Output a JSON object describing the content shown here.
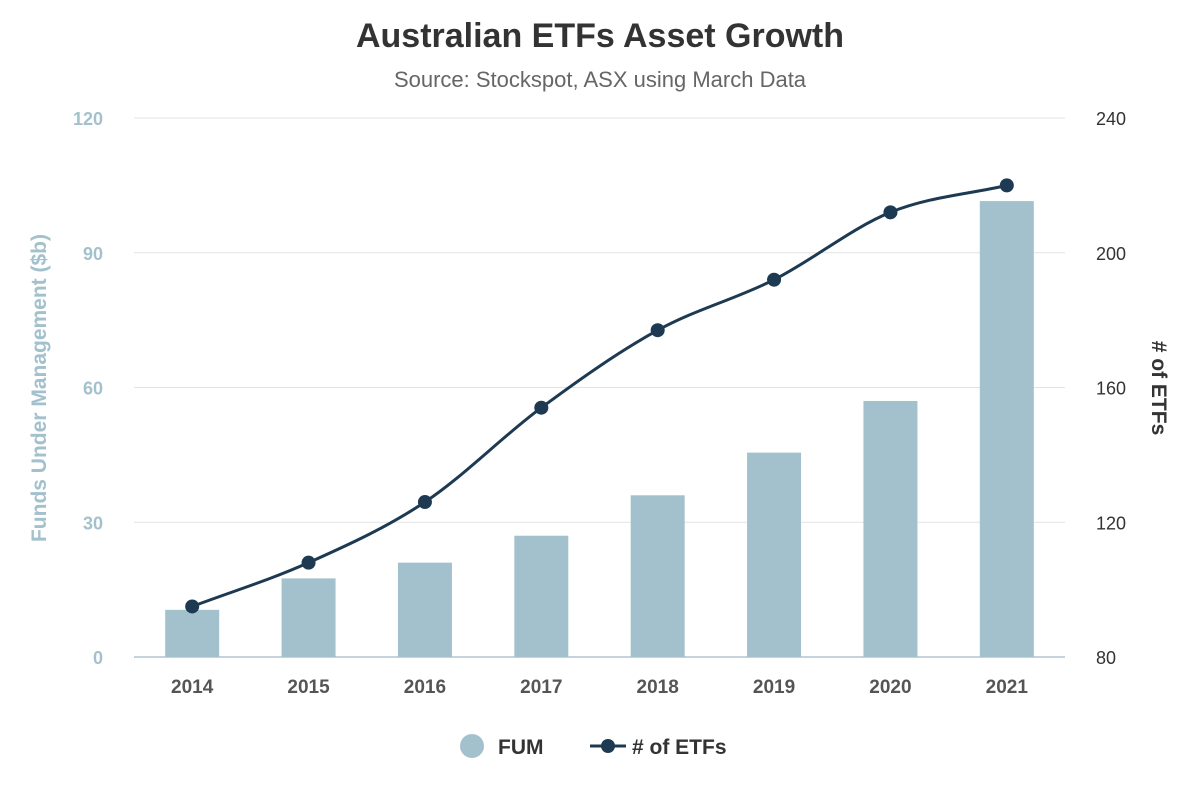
{
  "chart_data": {
    "type": "bar",
    "title": "Australian ETFs Asset Growth",
    "subtitle": "Source: Stockspot, ASX using March Data",
    "categories": [
      "2014",
      "2015",
      "2016",
      "2017",
      "2018",
      "2019",
      "2020",
      "2021"
    ],
    "series": [
      {
        "name": "FUM",
        "type": "bar",
        "axis": "left",
        "color": "#a3c1cc",
        "values": [
          10.5,
          17.5,
          21,
          27,
          36,
          45.5,
          57,
          101.5
        ]
      },
      {
        "name": "# of ETFs",
        "type": "line",
        "axis": "right",
        "color": "#1e3a52",
        "values": [
          95,
          108,
          126,
          154,
          177,
          192,
          212,
          220
        ]
      }
    ],
    "y_left": {
      "label": "Funds Under Management ($b)",
      "range": [
        0,
        120
      ],
      "ticks": [
        "0",
        "30",
        "60",
        "90",
        "120"
      ],
      "color": "#a3c1cc"
    },
    "y_right": {
      "label": "# of ETFs",
      "range": [
        80,
        240
      ],
      "ticks": [
        "80",
        "120",
        "160",
        "200",
        "240"
      ]
    },
    "grid": true,
    "legend": {
      "position": "bottom-center",
      "items": [
        "FUM",
        "# of ETFs"
      ]
    }
  }
}
